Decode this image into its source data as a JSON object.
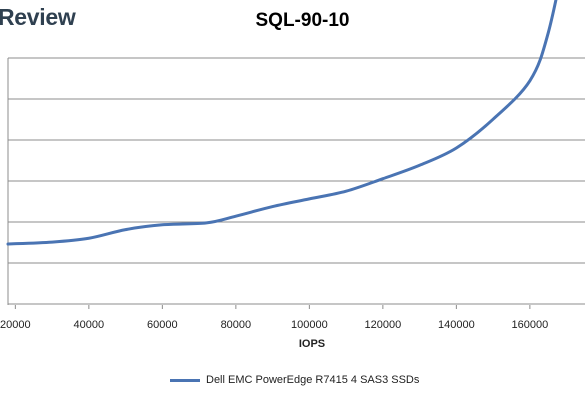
{
  "brand": {
    "logo_text": "Review"
  },
  "chart_data": {
    "type": "line",
    "title": "SQL-90-10",
    "xlabel": "IOPS",
    "ylabel": "",
    "x_ticks": [
      20000,
      40000,
      60000,
      80000,
      100000,
      120000,
      140000,
      160000
    ],
    "x_tick_labels": [
      "20000",
      "40000",
      "60000",
      "80000",
      "100000",
      "120000",
      "140000",
      "160000"
    ],
    "grid": "horizontal",
    "legend_position": "bottom",
    "series": [
      {
        "name": "Dell EMC PowerEdge R7415 4 SAS3 SSDs",
        "color": "#4a74b3",
        "x": [
          18000,
          30000,
          40000,
          50000,
          60000,
          72000,
          80000,
          90000,
          100000,
          110000,
          120000,
          130000,
          140000,
          150000,
          160000,
          165000,
          170000,
          174000
        ],
        "y": [
          1.0,
          1.02,
          1.06,
          1.15,
          1.2,
          1.22,
          1.29,
          1.39,
          1.47,
          1.55,
          1.68,
          1.82,
          2.0,
          2.3,
          2.7,
          3.2,
          4.1,
          5.0
        ]
      }
    ],
    "xlim": [
      18000,
      175000
    ]
  }
}
